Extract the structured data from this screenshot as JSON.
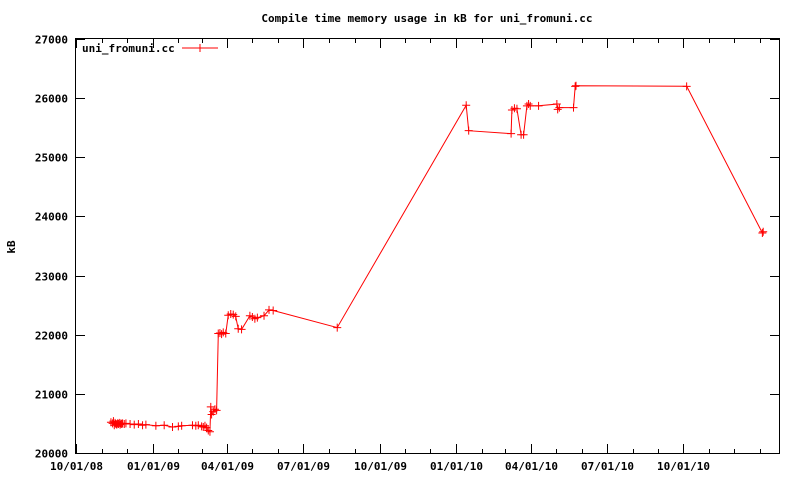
{
  "chart_data": {
    "type": "line",
    "title": "Compile time memory usage in kB for uni_fromuni.cc",
    "xlabel": "",
    "ylabel": "kB",
    "x_ticks": [
      "10/01/08",
      "01/01/09",
      "04/01/09",
      "07/01/09",
      "10/01/09",
      "01/01/10",
      "04/01/10",
      "07/01/10",
      "10/01/10"
    ],
    "x_range": [
      "2008-10-01",
      "2011-01-24"
    ],
    "y_ticks": [
      20000,
      21000,
      22000,
      23000,
      24000,
      25000,
      26000,
      27000
    ],
    "ylim": [
      20000,
      27000
    ],
    "grid": false,
    "legend_position": "top-left",
    "series": [
      {
        "name": "uni_fromuni.cc",
        "color": "#ff0000",
        "marker": "plus",
        "points": [
          [
            "2008-11-12",
            20520
          ],
          [
            "2008-11-14",
            20500
          ],
          [
            "2008-11-15",
            20540
          ],
          [
            "2008-11-16",
            20470
          ],
          [
            "2008-11-17",
            20510
          ],
          [
            "2008-11-18",
            20490
          ],
          [
            "2008-11-19",
            20480
          ],
          [
            "2008-11-20",
            20500
          ],
          [
            "2008-11-21",
            20490
          ],
          [
            "2008-11-22",
            20510
          ],
          [
            "2008-11-23",
            20480
          ],
          [
            "2008-11-24",
            20500
          ],
          [
            "2008-11-25",
            20490
          ],
          [
            "2008-11-26",
            20500
          ],
          [
            "2008-11-28",
            20490
          ],
          [
            "2008-11-30",
            20500
          ],
          [
            "2008-12-05",
            20490
          ],
          [
            "2008-12-10",
            20480
          ],
          [
            "2008-12-15",
            20490
          ],
          [
            "2008-12-20",
            20470
          ],
          [
            "2008-12-24",
            20480
          ],
          [
            "2009-01-05",
            20460
          ],
          [
            "2009-01-15",
            20470
          ],
          [
            "2009-01-25",
            20440
          ],
          [
            "2009-02-01",
            20450
          ],
          [
            "2009-02-05",
            20460
          ],
          [
            "2009-02-18",
            20470
          ],
          [
            "2009-02-22",
            20460
          ],
          [
            "2009-02-25",
            20470
          ],
          [
            "2009-03-01",
            20450
          ],
          [
            "2009-03-03",
            20440
          ],
          [
            "2009-03-05",
            20460
          ],
          [
            "2009-03-07",
            20430
          ],
          [
            "2009-03-09",
            20380
          ],
          [
            "2009-03-11",
            20360
          ],
          [
            "2009-03-12",
            20780
          ],
          [
            "2009-03-13",
            20650
          ],
          [
            "2009-03-15",
            20700
          ],
          [
            "2009-03-17",
            20740
          ],
          [
            "2009-03-19",
            20720
          ],
          [
            "2009-03-21",
            22020
          ],
          [
            "2009-03-23",
            22030
          ],
          [
            "2009-03-25",
            22010
          ],
          [
            "2009-03-27",
            22040
          ],
          [
            "2009-03-30",
            22020
          ],
          [
            "2009-04-02",
            22330
          ],
          [
            "2009-04-05",
            22350
          ],
          [
            "2009-04-08",
            22340
          ],
          [
            "2009-04-11",
            22310
          ],
          [
            "2009-04-14",
            22100
          ],
          [
            "2009-04-18",
            22090
          ],
          [
            "2009-04-28",
            22320
          ],
          [
            "2009-05-01",
            22300
          ],
          [
            "2009-05-04",
            22270
          ],
          [
            "2009-05-07",
            22290
          ],
          [
            "2009-05-15",
            22320
          ],
          [
            "2009-05-21",
            22420
          ],
          [
            "2009-05-26",
            22410
          ],
          [
            "2009-08-11",
            22120
          ],
          [
            "2010-01-13",
            25880
          ],
          [
            "2010-01-16",
            25450
          ],
          [
            "2010-03-08",
            25400
          ],
          [
            "2010-03-09",
            25800
          ],
          [
            "2010-03-12",
            25830
          ],
          [
            "2010-03-15",
            25820
          ],
          [
            "2010-03-20",
            25380
          ],
          [
            "2010-03-23",
            25380
          ],
          [
            "2010-03-27",
            25870
          ],
          [
            "2010-03-29",
            25900
          ],
          [
            "2010-03-31",
            25870
          ],
          [
            "2010-04-10",
            25870
          ],
          [
            "2010-05-02",
            25900
          ],
          [
            "2010-05-03",
            25810
          ],
          [
            "2010-05-05",
            25840
          ],
          [
            "2010-05-22",
            25840
          ],
          [
            "2010-05-24",
            26200
          ],
          [
            "2010-05-25",
            26210
          ],
          [
            "2010-10-05",
            26200
          ],
          [
            "2011-01-04",
            23720
          ],
          [
            "2011-01-05",
            23740
          ]
        ]
      }
    ]
  }
}
